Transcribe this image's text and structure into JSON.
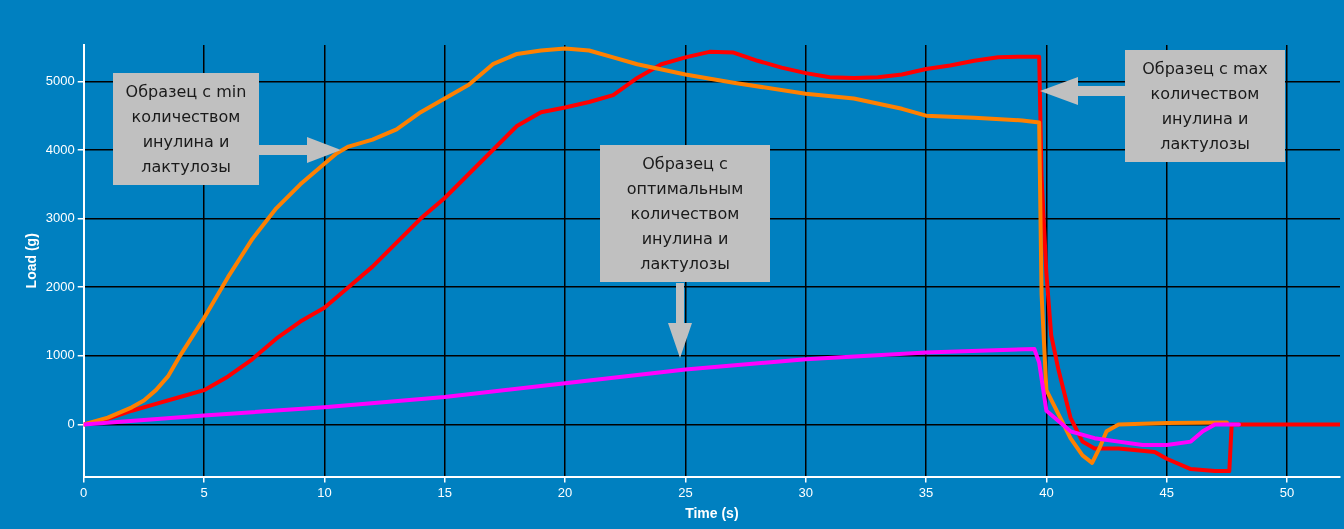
{
  "chart_data": {
    "type": "line",
    "xlabel": "Time (s)",
    "ylabel": "Load (g)",
    "xlim": [
      0,
      52.2
    ],
    "ylim": [
      -760,
      5530
    ],
    "xticks": [
      0,
      5,
      10,
      15,
      20,
      25,
      30,
      35,
      40,
      45,
      50
    ],
    "yticks": [
      0,
      1000,
      2000,
      3000,
      4000,
      5000
    ],
    "grid": true,
    "legend": false,
    "marker": "none",
    "line_style": "solid",
    "series": [
      {
        "color": "#ff00ff",
        "x": [
          0,
          5,
          10,
          15,
          20,
          25,
          30,
          35,
          39.5,
          39.7,
          40,
          41,
          42,
          43,
          44,
          45,
          46,
          46.5,
          47,
          48
        ],
        "values": [
          0,
          130,
          250,
          400,
          600,
          800,
          950,
          1050,
          1100,
          900,
          200,
          -100,
          -200,
          -250,
          -300,
          -300,
          -250,
          -100,
          0,
          0
        ]
      },
      {
        "color": "#ff8000",
        "x": [
          0,
          1,
          2,
          2.5,
          3,
          3.5,
          4,
          5,
          6,
          7,
          8,
          9,
          10,
          10.5,
          11,
          12,
          13,
          14,
          15,
          16,
          17,
          18,
          19,
          20,
          21,
          22,
          23,
          25,
          27,
          30,
          32,
          34,
          35,
          37,
          39,
          39.7,
          39.8,
          40,
          40.5,
          41,
          41.5,
          41.9,
          42.2,
          42.5,
          43,
          45,
          47.5
        ],
        "values": [
          0,
          100,
          250,
          350,
          500,
          700,
          1000,
          1550,
          2150,
          2700,
          3150,
          3500,
          3800,
          3950,
          4050,
          4150,
          4300,
          4550,
          4750,
          4950,
          5250,
          5400,
          5450,
          5480,
          5450,
          5350,
          5250,
          5100,
          4980,
          4820,
          4750,
          4600,
          4500,
          4470,
          4430,
          4400,
          1900,
          500,
          150,
          -200,
          -450,
          -560,
          -350,
          -100,
          0,
          20,
          30
        ]
      },
      {
        "color": "#ff0000",
        "x": [
          0,
          1,
          2,
          3,
          4,
          5,
          6,
          7,
          8,
          9,
          10,
          11,
          12,
          13,
          14,
          15,
          16,
          17,
          18,
          19,
          20,
          21,
          22,
          23,
          24,
          25,
          26,
          27,
          28,
          29,
          30,
          31,
          32,
          33,
          34,
          35,
          36,
          37,
          38,
          39,
          39.7,
          39.8,
          40,
          40.2,
          40.5,
          41,
          41.5,
          42,
          43,
          44.5,
          45,
          46,
          47,
          47.6,
          47.7,
          52.2
        ],
        "values": [
          0,
          80,
          200,
          300,
          400,
          500,
          700,
          950,
          1250,
          1500,
          1700,
          2000,
          2300,
          2650,
          3000,
          3300,
          3650,
          4000,
          4350,
          4550,
          4620,
          4700,
          4800,
          5050,
          5250,
          5350,
          5430,
          5420,
          5300,
          5200,
          5120,
          5060,
          5050,
          5060,
          5100,
          5180,
          5230,
          5300,
          5350,
          5360,
          5360,
          3600,
          2200,
          1300,
          800,
          100,
          -250,
          -350,
          -350,
          -400,
          -500,
          -650,
          -680,
          -680,
          0,
          0
        ]
      }
    ],
    "annotations": [
      "Образец с min количеством инулина и лактулозы",
      "Образец с оптимальным количеством инулина и лактулозы",
      "Образец с max количеством инулина и лактулозы"
    ]
  }
}
